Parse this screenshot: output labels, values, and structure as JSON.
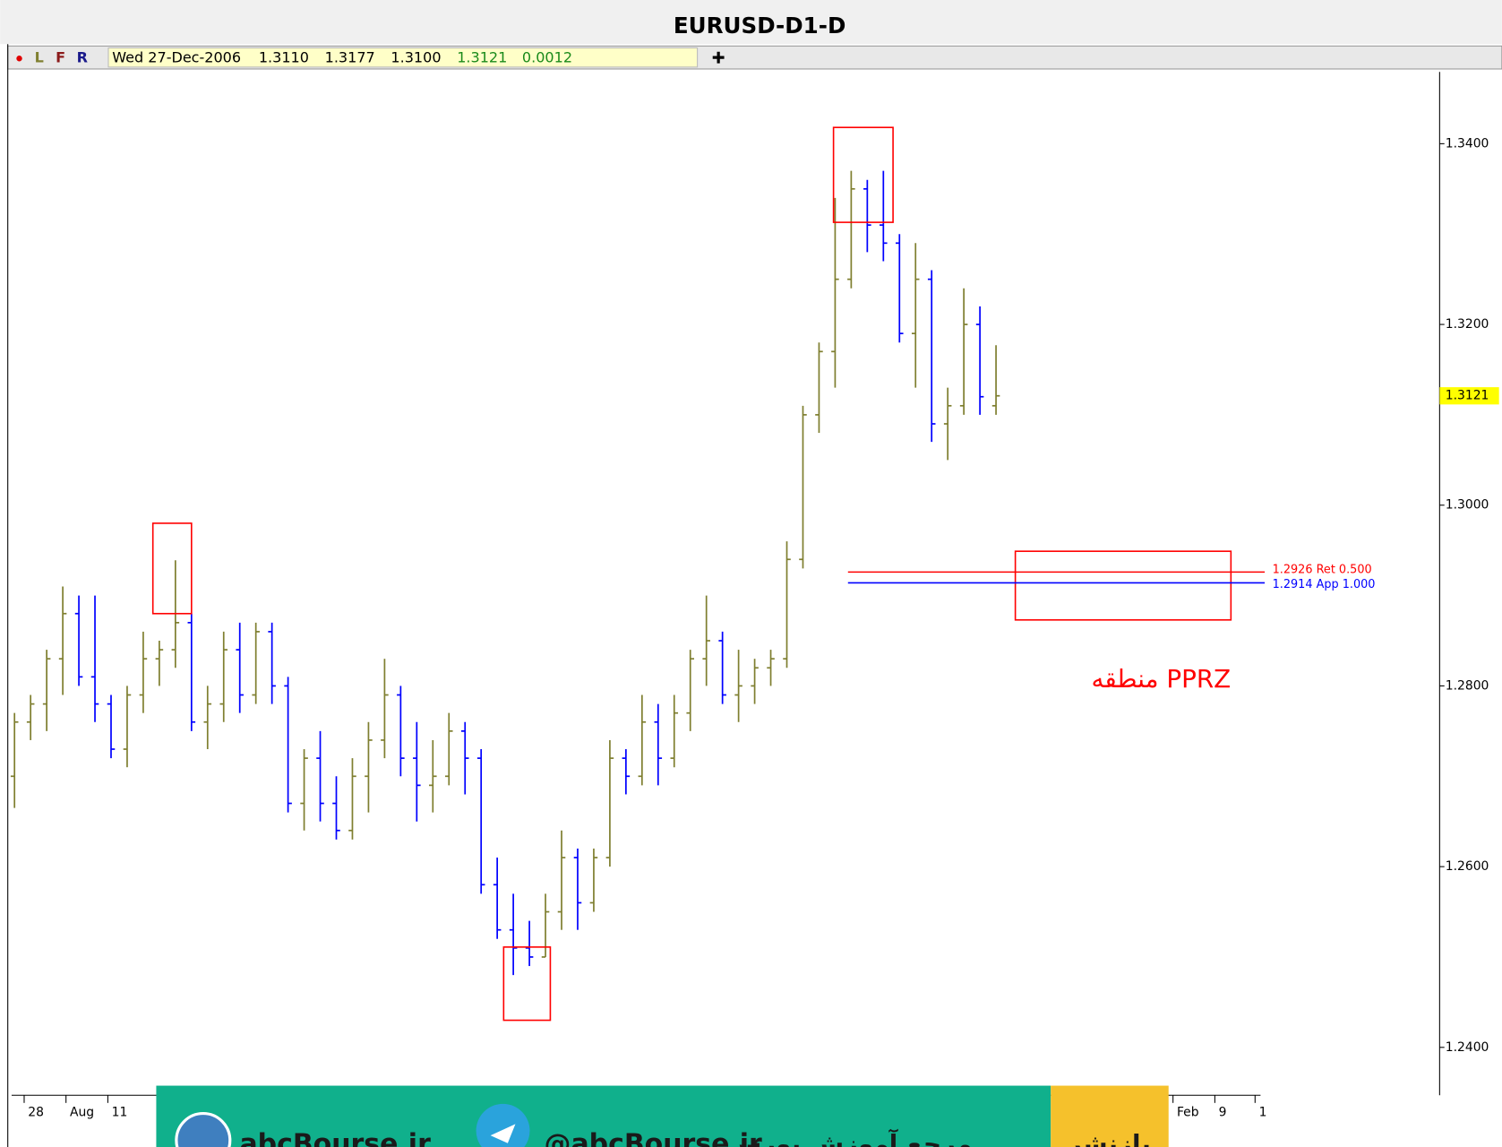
{
  "chart_data": {
    "type": "ohlc",
    "title": "EURUSD-D1-D",
    "toolbar": [
      "L",
      "F",
      "R"
    ],
    "info": {
      "date": "Wed 27-Dec-2006",
      "open": "1.3110",
      "high": "1.3177",
      "low": "1.3100",
      "close": "1.3121",
      "change": "0.0012"
    },
    "up_color": "#7f7f30",
    "down_color": "#0000ff",
    "open": [
      1.27,
      1.276,
      1.278,
      1.283,
      1.288,
      1.281,
      1.278,
      1.273,
      1.279,
      1.283,
      1.284,
      1.287,
      1.276,
      1.278,
      1.284,
      1.279,
      1.286,
      1.28,
      1.267,
      1.272,
      1.267,
      1.264,
      1.27,
      1.274,
      1.279,
      1.272,
      1.269,
      1.27,
      1.275,
      1.272,
      1.258,
      1.253,
      1.251,
      1.25,
      1.255,
      1.261,
      1.256,
      1.261,
      1.272,
      1.27,
      1.276,
      1.272,
      1.277,
      1.283,
      1.285,
      1.279,
      1.28,
      1.282,
      1.283,
      1.294,
      1.31,
      1.317,
      1.325,
      1.335,
      1.331,
      1.329,
      1.319,
      1.325,
      1.309,
      1.311,
      1.32,
      1.311
    ],
    "high": [
      1.277,
      1.279,
      1.284,
      1.291,
      1.29,
      1.29,
      1.279,
      1.28,
      1.286,
      1.285,
      1.2939,
      1.288,
      1.28,
      1.286,
      1.287,
      1.287,
      1.287,
      1.281,
      1.273,
      1.275,
      1.27,
      1.272,
      1.276,
      1.283,
      1.28,
      1.276,
      1.274,
      1.277,
      1.276,
      1.273,
      1.261,
      1.257,
      1.254,
      1.257,
      1.264,
      1.262,
      1.262,
      1.274,
      1.273,
      1.279,
      1.278,
      1.279,
      1.284,
      1.29,
      1.286,
      1.284,
      1.283,
      1.284,
      1.296,
      1.311,
      1.318,
      1.334,
      1.337,
      1.336,
      1.337,
      1.33,
      1.329,
      1.326,
      1.313,
      1.324,
      1.322,
      1.3177
    ],
    "low": [
      1.2665,
      1.274,
      1.275,
      1.279,
      1.28,
      1.276,
      1.272,
      1.271,
      1.277,
      1.28,
      1.282,
      1.275,
      1.273,
      1.276,
      1.277,
      1.278,
      1.278,
      1.266,
      1.264,
      1.265,
      1.263,
      1.263,
      1.266,
      1.272,
      1.27,
      1.265,
      1.266,
      1.269,
      1.268,
      1.257,
      1.252,
      1.248,
      1.249,
      1.25,
      1.253,
      1.253,
      1.255,
      1.26,
      1.268,
      1.269,
      1.269,
      1.271,
      1.275,
      1.28,
      1.278,
      1.276,
      1.278,
      1.28,
      1.282,
      1.293,
      1.308,
      1.313,
      1.324,
      1.328,
      1.327,
      1.318,
      1.313,
      1.307,
      1.305,
      1.31,
      1.31,
      1.31
    ],
    "close": [
      1.276,
      1.278,
      1.283,
      1.288,
      1.281,
      1.278,
      1.273,
      1.279,
      1.283,
      1.284,
      1.287,
      1.276,
      1.278,
      1.284,
      1.279,
      1.286,
      1.28,
      1.267,
      1.272,
      1.267,
      1.264,
      1.27,
      1.274,
      1.279,
      1.272,
      1.269,
      1.27,
      1.275,
      1.272,
      1.258,
      1.253,
      1.251,
      1.25,
      1.255,
      1.261,
      1.256,
      1.261,
      1.272,
      1.27,
      1.276,
      1.272,
      1.277,
      1.283,
      1.285,
      1.279,
      1.28,
      1.282,
      1.283,
      1.294,
      1.31,
      1.317,
      1.325,
      1.335,
      1.331,
      1.329,
      1.319,
      1.325,
      1.309,
      1.311,
      1.32,
      1.312,
      1.3121
    ],
    "xlim": [
      -0.18,
      88.57
    ],
    "xticks": [
      {
        "value": 0.6,
        "label": "28"
      },
      {
        "value": 3.2,
        "label": "Aug"
      },
      {
        "value": 5.8,
        "label": "11"
      },
      {
        "value": 72,
        "label": "Feb"
      },
      {
        "value": 74.6,
        "label": "9"
      },
      {
        "value": 77.1,
        "label": "1"
      }
    ],
    "ylim": [
      1.2347,
      1.34795
    ],
    "yticks": [
      {
        "value": 1.34,
        "label": "1.3400"
      },
      {
        "value": 1.32,
        "label": "1.3200"
      },
      {
        "value": 1.3,
        "label": "1.3000"
      },
      {
        "value": 1.28,
        "label": "1.2800"
      },
      {
        "value": 1.26,
        "label": "1.2600"
      },
      {
        "value": 1.24,
        "label": "1.2400"
      }
    ],
    "last_price": {
      "value": 1.3121,
      "label": "1.3121"
    },
    "levels": [
      {
        "value": 1.2926,
        "label": "1.2926 Ret 0.500",
        "color": "#ff0000",
        "x": [
          51.8,
          77.7
        ]
      },
      {
        "value": 1.2914,
        "label": "1.2914 App 1.000",
        "color": "#0000ff",
        "x": [
          51.8,
          77.7
        ]
      }
    ],
    "boxes": [
      {
        "x": [
          8.6,
          11.0
        ],
        "y": [
          1.288,
          1.298
        ]
      },
      {
        "x": [
          30.4,
          33.3
        ],
        "y": [
          1.243,
          1.2511
        ]
      },
      {
        "x": [
          50.9,
          54.6
        ],
        "y": [
          1.3313,
          1.3418
        ]
      },
      {
        "x": [
          62.2,
          75.6
        ],
        "y": [
          1.2873,
          1.2949
        ]
      }
    ],
    "annotation": "منطقه PPRZ",
    "banner": [
      "abcBourse.ir",
      "@abcBourse.ir",
      "مرجع آموزش بورس",
      "بازنشر"
    ]
  }
}
